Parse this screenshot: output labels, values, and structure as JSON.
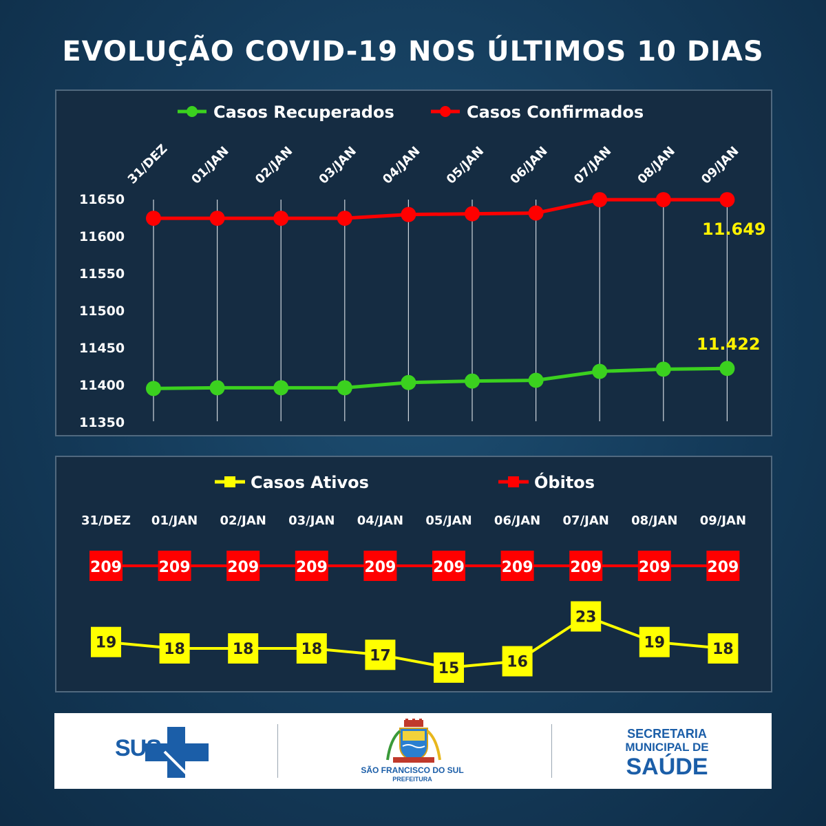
{
  "title": "EVOLUÇÃO COVID-19 NOS ÚLTIMOS 10 DIAS",
  "colors": {
    "green": "#3bd11f",
    "red": "#ff0000",
    "yellow": "#ffff00",
    "callout": "#fff200"
  },
  "chart_data": [
    {
      "type": "line",
      "categories": [
        "31/DEZ",
        "01/JAN",
        "02/JAN",
        "03/JAN",
        "04/JAN",
        "05/JAN",
        "06/JAN",
        "07/JAN",
        "08/JAN",
        "09/JAN"
      ],
      "series": [
        {
          "name": "Casos Recuperados",
          "color": "green",
          "values": [
            11395,
            11396,
            11396,
            11396,
            11403,
            11405,
            11406,
            11418,
            11421,
            11422
          ]
        },
        {
          "name": "Casos Confirmados",
          "color": "red",
          "values": [
            11624,
            11624,
            11624,
            11624,
            11629,
            11630,
            11631,
            11649,
            11649,
            11649
          ]
        }
      ],
      "yticks": [
        11650,
        11600,
        11550,
        11500,
        11450,
        11400,
        11350
      ],
      "ylim": [
        11350,
        11650
      ],
      "callouts": {
        "confirmed_last": "11.649",
        "recovered_last": "11.422"
      },
      "grid": "vertical"
    },
    {
      "type": "line",
      "categories": [
        "31/DEZ",
        "01/JAN",
        "02/JAN",
        "03/JAN",
        "04/JAN",
        "05/JAN",
        "06/JAN",
        "07/JAN",
        "08/JAN",
        "09/JAN"
      ],
      "series": [
        {
          "name": "Casos Ativos",
          "color": "yellow",
          "values": [
            19,
            18,
            18,
            18,
            17,
            15,
            16,
            23,
            19,
            18
          ]
        },
        {
          "name": "Óbitos",
          "color": "red",
          "values": [
            209,
            209,
            209,
            209,
            209,
            209,
            209,
            209,
            209,
            209
          ]
        }
      ]
    }
  ],
  "footer": {
    "sus": "SUS",
    "city_name": "SÃO FRANCISCO DO SUL",
    "city_sub": "PREFEITURA",
    "sec_line1": "SECRETARIA",
    "sec_line2": "MUNICIPAL DE",
    "sec_line3": "SAÚDE"
  }
}
